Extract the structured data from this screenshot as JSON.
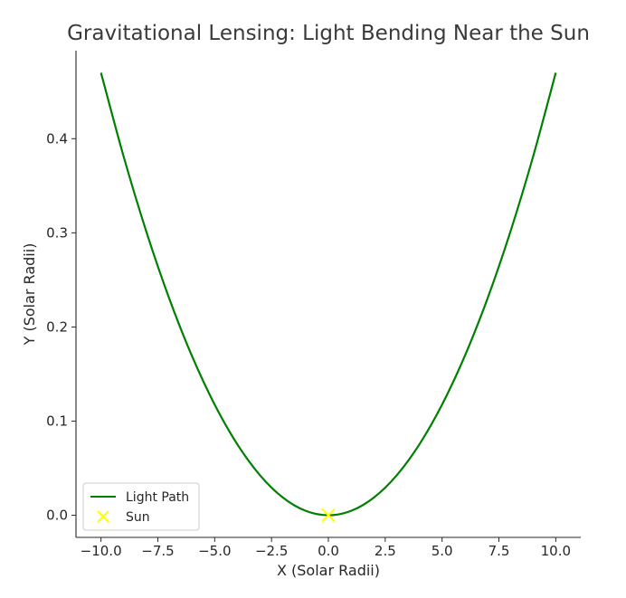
{
  "chart_data": {
    "type": "line",
    "title": "Gravitational Lensing: Light Bending Near the Sun",
    "xlabel": "X (Solar Radii)",
    "ylabel": "Y (Solar Radii)",
    "xlim": [
      -11.1,
      11.1
    ],
    "ylim": [
      -0.0235,
      0.4935
    ],
    "xticks": [
      -10,
      -7.5,
      -5,
      -2.5,
      0,
      2.5,
      5,
      7.5,
      10
    ],
    "xtick_labels": [
      "−10.0",
      "−7.5",
      "−5.0",
      "−2.5",
      "0.0",
      "2.5",
      "5.0",
      "7.5",
      "10.0"
    ],
    "yticks": [
      0,
      0.1,
      0.2,
      0.3,
      0.4
    ],
    "ytick_labels": [
      "0.0",
      "0.1",
      "0.2",
      "0.3",
      "0.4"
    ],
    "grid": false,
    "legend_position": "lower-left",
    "series": [
      {
        "name": "Light Path",
        "kind": "line",
        "color": "#008000",
        "x": [
          -10,
          -9,
          -8,
          -7,
          -6,
          -5,
          -4,
          -3,
          -2,
          -1,
          0,
          1,
          2,
          3,
          4,
          5,
          6,
          7,
          8,
          9,
          10
        ],
        "y": [
          0.47,
          0.3807,
          0.3008,
          0.2303,
          0.1692,
          0.1175,
          0.0752,
          0.0423,
          0.0188,
          0.0047,
          0.0,
          0.0047,
          0.0188,
          0.0423,
          0.0752,
          0.1175,
          0.1692,
          0.2303,
          0.3008,
          0.3807,
          0.47
        ]
      },
      {
        "name": "Sun",
        "kind": "marker",
        "marker": "x",
        "color": "#ffff00",
        "x": [
          0
        ],
        "y": [
          0
        ]
      }
    ]
  }
}
